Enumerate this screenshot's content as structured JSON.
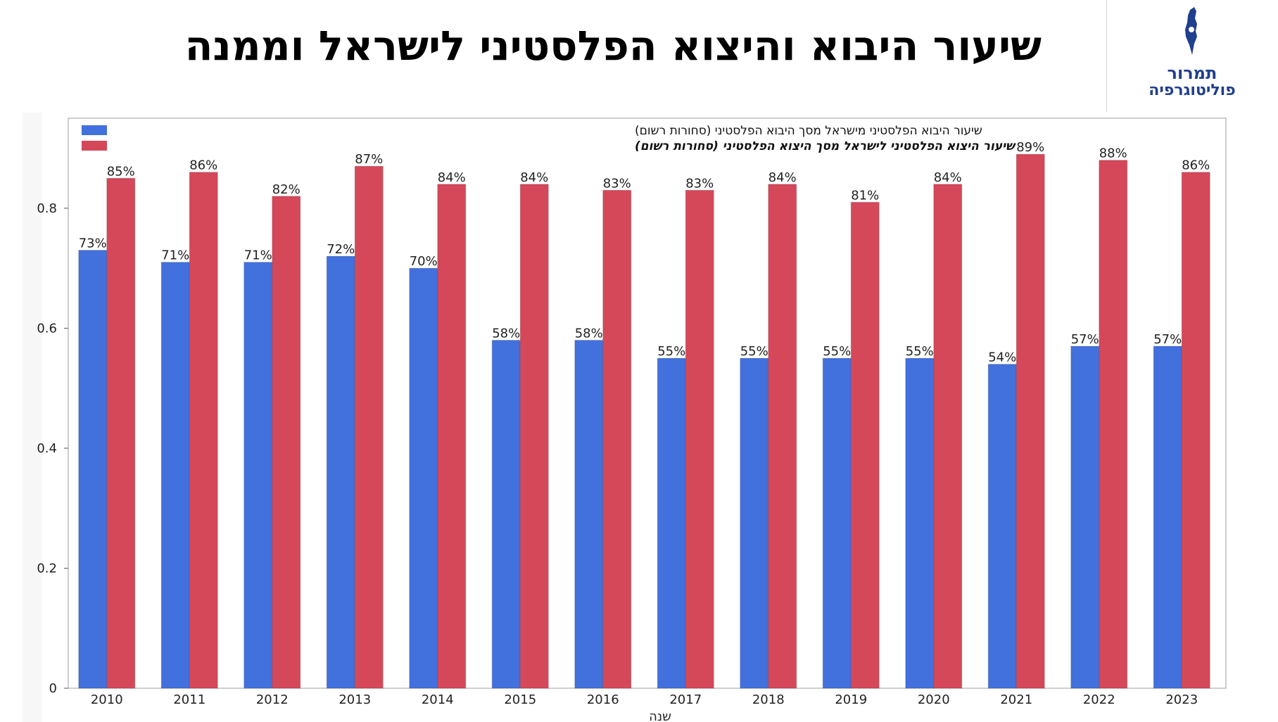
{
  "header": {
    "title": "שיעור היבוא והיצוא הפלסטיני לישראל וממנה",
    "logo_line1": "תמרור",
    "logo_line2": "פוליטוגרפיה",
    "logo_icon": "israel-map-icon"
  },
  "colors": {
    "series1": "#4270dd",
    "series2": "#d5485a",
    "logo": "#1f3f8f"
  },
  "chart_data": {
    "type": "bar",
    "categories": [
      "2010",
      "2011",
      "2012",
      "2013",
      "2014",
      "2015",
      "2016",
      "2017",
      "2018",
      "2019",
      "2020",
      "2021",
      "2022",
      "2023"
    ],
    "series": [
      {
        "name": "שיעור היבוא הפלסטיני מישראל מסך היבוא הפלסטיני (סחורות רשום)",
        "values": [
          0.73,
          0.71,
          0.71,
          0.72,
          0.7,
          0.58,
          0.58,
          0.55,
          0.55,
          0.55,
          0.55,
          0.54,
          0.57,
          0.57
        ],
        "labels": [
          "73%",
          "71%",
          "71%",
          "72%",
          "70%",
          "58%",
          "58%",
          "55%",
          "55%",
          "55%",
          "55%",
          "54%",
          "57%",
          "57%"
        ]
      },
      {
        "name": "שיעור היצוא הפלסטיני לישראל מסך היצוא הפלסטיני (סחורות רשום)",
        "values": [
          0.85,
          0.86,
          0.82,
          0.87,
          0.84,
          0.84,
          0.83,
          0.83,
          0.84,
          0.81,
          0.84,
          0.89,
          0.88,
          0.86
        ],
        "labels": [
          "85%",
          "86%",
          "82%",
          "87%",
          "84%",
          "84%",
          "83%",
          "83%",
          "84%",
          "81%",
          "84%",
          "89%",
          "88%",
          "86%"
        ]
      }
    ],
    "xlabel": "שנה",
    "ylabel": "",
    "ylim": [
      0,
      0.95
    ],
    "yticks": [
      0,
      0.2,
      0.4,
      0.6,
      0.8
    ],
    "ytick_labels": [
      "0",
      "0.2",
      "0.4",
      "0.6",
      "0.8"
    ],
    "grid": false,
    "legend_position": "top-left"
  }
}
